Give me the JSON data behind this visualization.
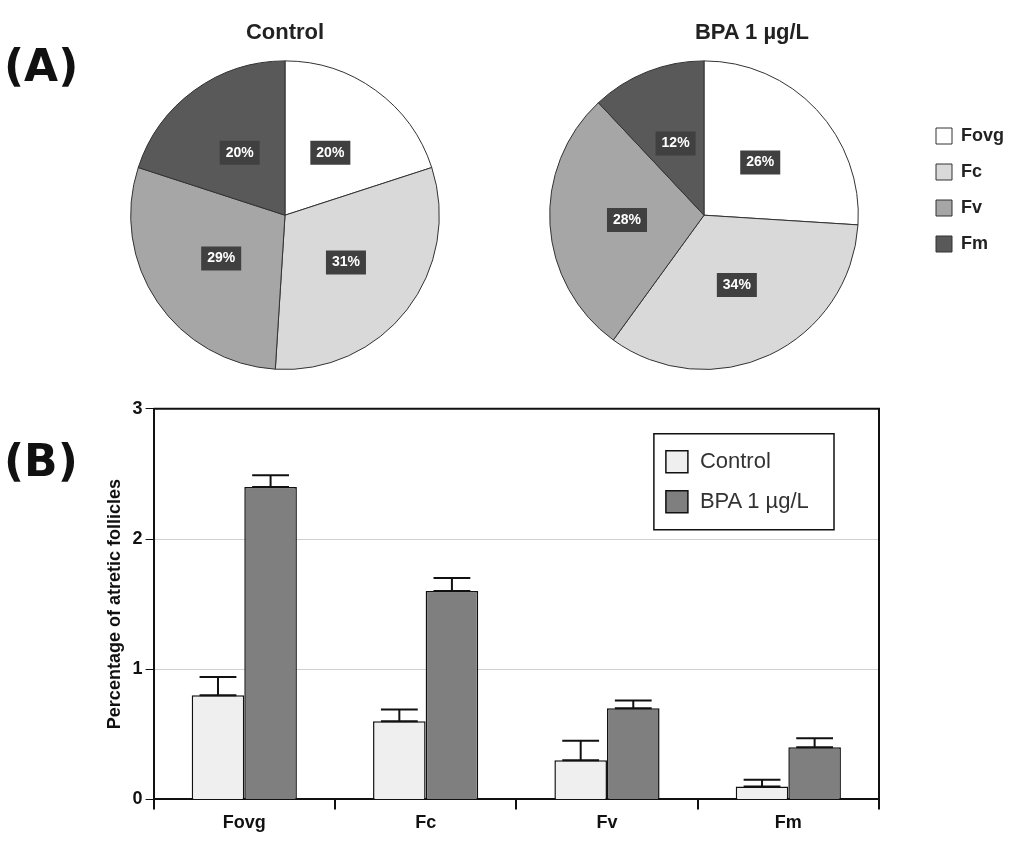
{
  "chart_data": [
    {
      "type": "pie",
      "title": "Control",
      "annotations": [
        "(A)"
      ],
      "categories": [
        null,
        null,
        null,
        null
      ],
      "values": [
        20,
        31,
        29,
        20
      ],
      "colors": [
        "#ffffff",
        "#d9d9d9",
        "#a6a6a6",
        "#595959"
      ],
      "value_labels": [
        "20%",
        "31%",
        "29%",
        "20%"
      ],
      "legend": false
    },
    {
      "type": "pie",
      "title": "BPA 1 µg/L",
      "categories": [
        "Fovg",
        "Fc",
        "Fv",
        "Fm"
      ],
      "values": [
        26,
        34,
        28,
        12
      ],
      "colors": [
        "#ffffff",
        "#d9d9d9",
        "#a6a6a6",
        "#595959"
      ],
      "value_labels": [
        "26%",
        "34%",
        "28%",
        "12%"
      ],
      "legend": "right"
    },
    {
      "type": "bar",
      "annotations": [
        "(B)"
      ],
      "ylabel": "Percentage of atretic follicles",
      "categories": [
        "Fovg",
        "Fc",
        "Fv",
        "Fm"
      ],
      "ylim": [
        0,
        3
      ],
      "yticks": [
        0,
        1,
        2,
        3
      ],
      "grid": "y",
      "legend": "top right",
      "series": [
        {
          "name": "Control",
          "color": "#efefef",
          "values": [
            0.8,
            0.6,
            0.3,
            0.1
          ],
          "errors": [
            [
              0.8,
              0.94
            ],
            [
              0.6,
              0.69
            ],
            [
              0.3,
              0.45
            ],
            [
              0.1,
              0.15
            ]
          ]
        },
        {
          "name": "BPA 1 µg/L",
          "color": "#7f7f7f",
          "values": [
            2.4,
            1.6,
            0.7,
            0.4
          ],
          "errors": [
            [
              2.4,
              2.49
            ],
            [
              1.6,
              1.7
            ],
            [
              0.7,
              0.76
            ],
            [
              0.4,
              0.47
            ]
          ]
        }
      ]
    }
  ]
}
